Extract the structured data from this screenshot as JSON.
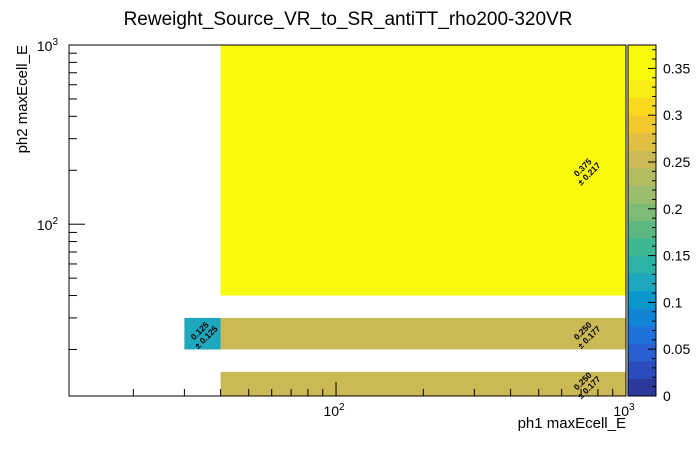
{
  "chart_data": {
    "type": "heatmap",
    "title": "Reweight_Source_VR_to_SR_antiTT_rho200-320VR",
    "xlabel": "ph1 maxEcell_E",
    "ylabel": "ph2 maxEcell_E",
    "x_scale": "log",
    "y_scale": "log",
    "xlim": [
      12,
      1000
    ],
    "ylim": [
      11,
      1000
    ],
    "x_major_ticks": [
      {
        "value": 100,
        "label": "10",
        "exp": "2"
      },
      {
        "value": 1000,
        "label": "10",
        "exp": "3"
      }
    ],
    "y_major_ticks": [
      {
        "value": 100,
        "label": "10",
        "exp": "2"
      },
      {
        "value": 1000,
        "label": "10",
        "exp": "3"
      }
    ],
    "cells": [
      {
        "x0": 40,
        "x1": 1000,
        "y0": 40,
        "y1": 1000,
        "value": 0.375,
        "error": 0.217,
        "label": "0.375",
        "error_label": "± 0.217"
      },
      {
        "x0": 40,
        "x1": 1000,
        "y0": 20,
        "y1": 30,
        "value": 0.25,
        "error": 0.177,
        "label": "0.250",
        "error_label": "± 0.177"
      },
      {
        "x0": 40,
        "x1": 1000,
        "y0": 11,
        "y1": 15,
        "value": 0.25,
        "error": 0.177,
        "label": "0.250",
        "error_label": "± 0.177"
      },
      {
        "x0": 30,
        "x1": 40,
        "y0": 20,
        "y1": 30,
        "value": 0.125,
        "error": 0.125,
        "label": "0.125",
        "error_label": "± 0.125"
      }
    ],
    "colorbar": {
      "min": 0,
      "max": 0.375,
      "ticks": [
        {
          "value": 0,
          "label": "0"
        },
        {
          "value": 0.05,
          "label": "0.05"
        },
        {
          "value": 0.1,
          "label": "0.1"
        },
        {
          "value": 0.15,
          "label": "0.15"
        },
        {
          "value": 0.2,
          "label": "0.2"
        },
        {
          "value": 0.25,
          "label": "0.25"
        },
        {
          "value": 0.3,
          "label": "0.3"
        },
        {
          "value": 0.35,
          "label": "0.35"
        }
      ],
      "colors": [
        "#2b3a9a",
        "#2a4dbb",
        "#2860d0",
        "#1f72d9",
        "#1184d6",
        "#0a98cc",
        "#1ea8bd",
        "#2db3a6",
        "#3bb892",
        "#5ab880",
        "#7dbb76",
        "#9bbd6c",
        "#b3bc60",
        "#cbb955",
        "#e0be44",
        "#f2c82c",
        "#f9d81d",
        "#f8ec12",
        "#f9f90e",
        "#f9f90e"
      ]
    }
  }
}
